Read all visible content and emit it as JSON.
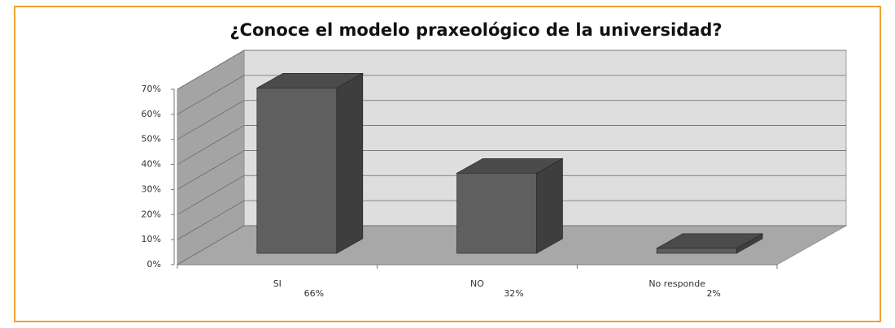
{
  "chart_data": {
    "type": "bar3d",
    "title": "¿Conoce el modelo praxeológico de la universidad?",
    "categories": [
      "SI",
      "NO",
      "No responde"
    ],
    "values": [
      66,
      32,
      2
    ],
    "value_labels": [
      "66%",
      "32%",
      "2%"
    ],
    "color": "#5f5f5f",
    "ylim": [
      0,
      70
    ],
    "yticks": [
      {
        "value": 0,
        "label": "0%"
      },
      {
        "value": 10,
        "label": "10%"
      },
      {
        "value": 20,
        "label": "20%"
      },
      {
        "value": 30,
        "label": "30%"
      },
      {
        "value": 40,
        "label": "40%"
      },
      {
        "value": 50,
        "label": "50%"
      },
      {
        "value": 60,
        "label": "60%"
      },
      {
        "value": 70,
        "label": "70%"
      }
    ],
    "grid": true
  }
}
